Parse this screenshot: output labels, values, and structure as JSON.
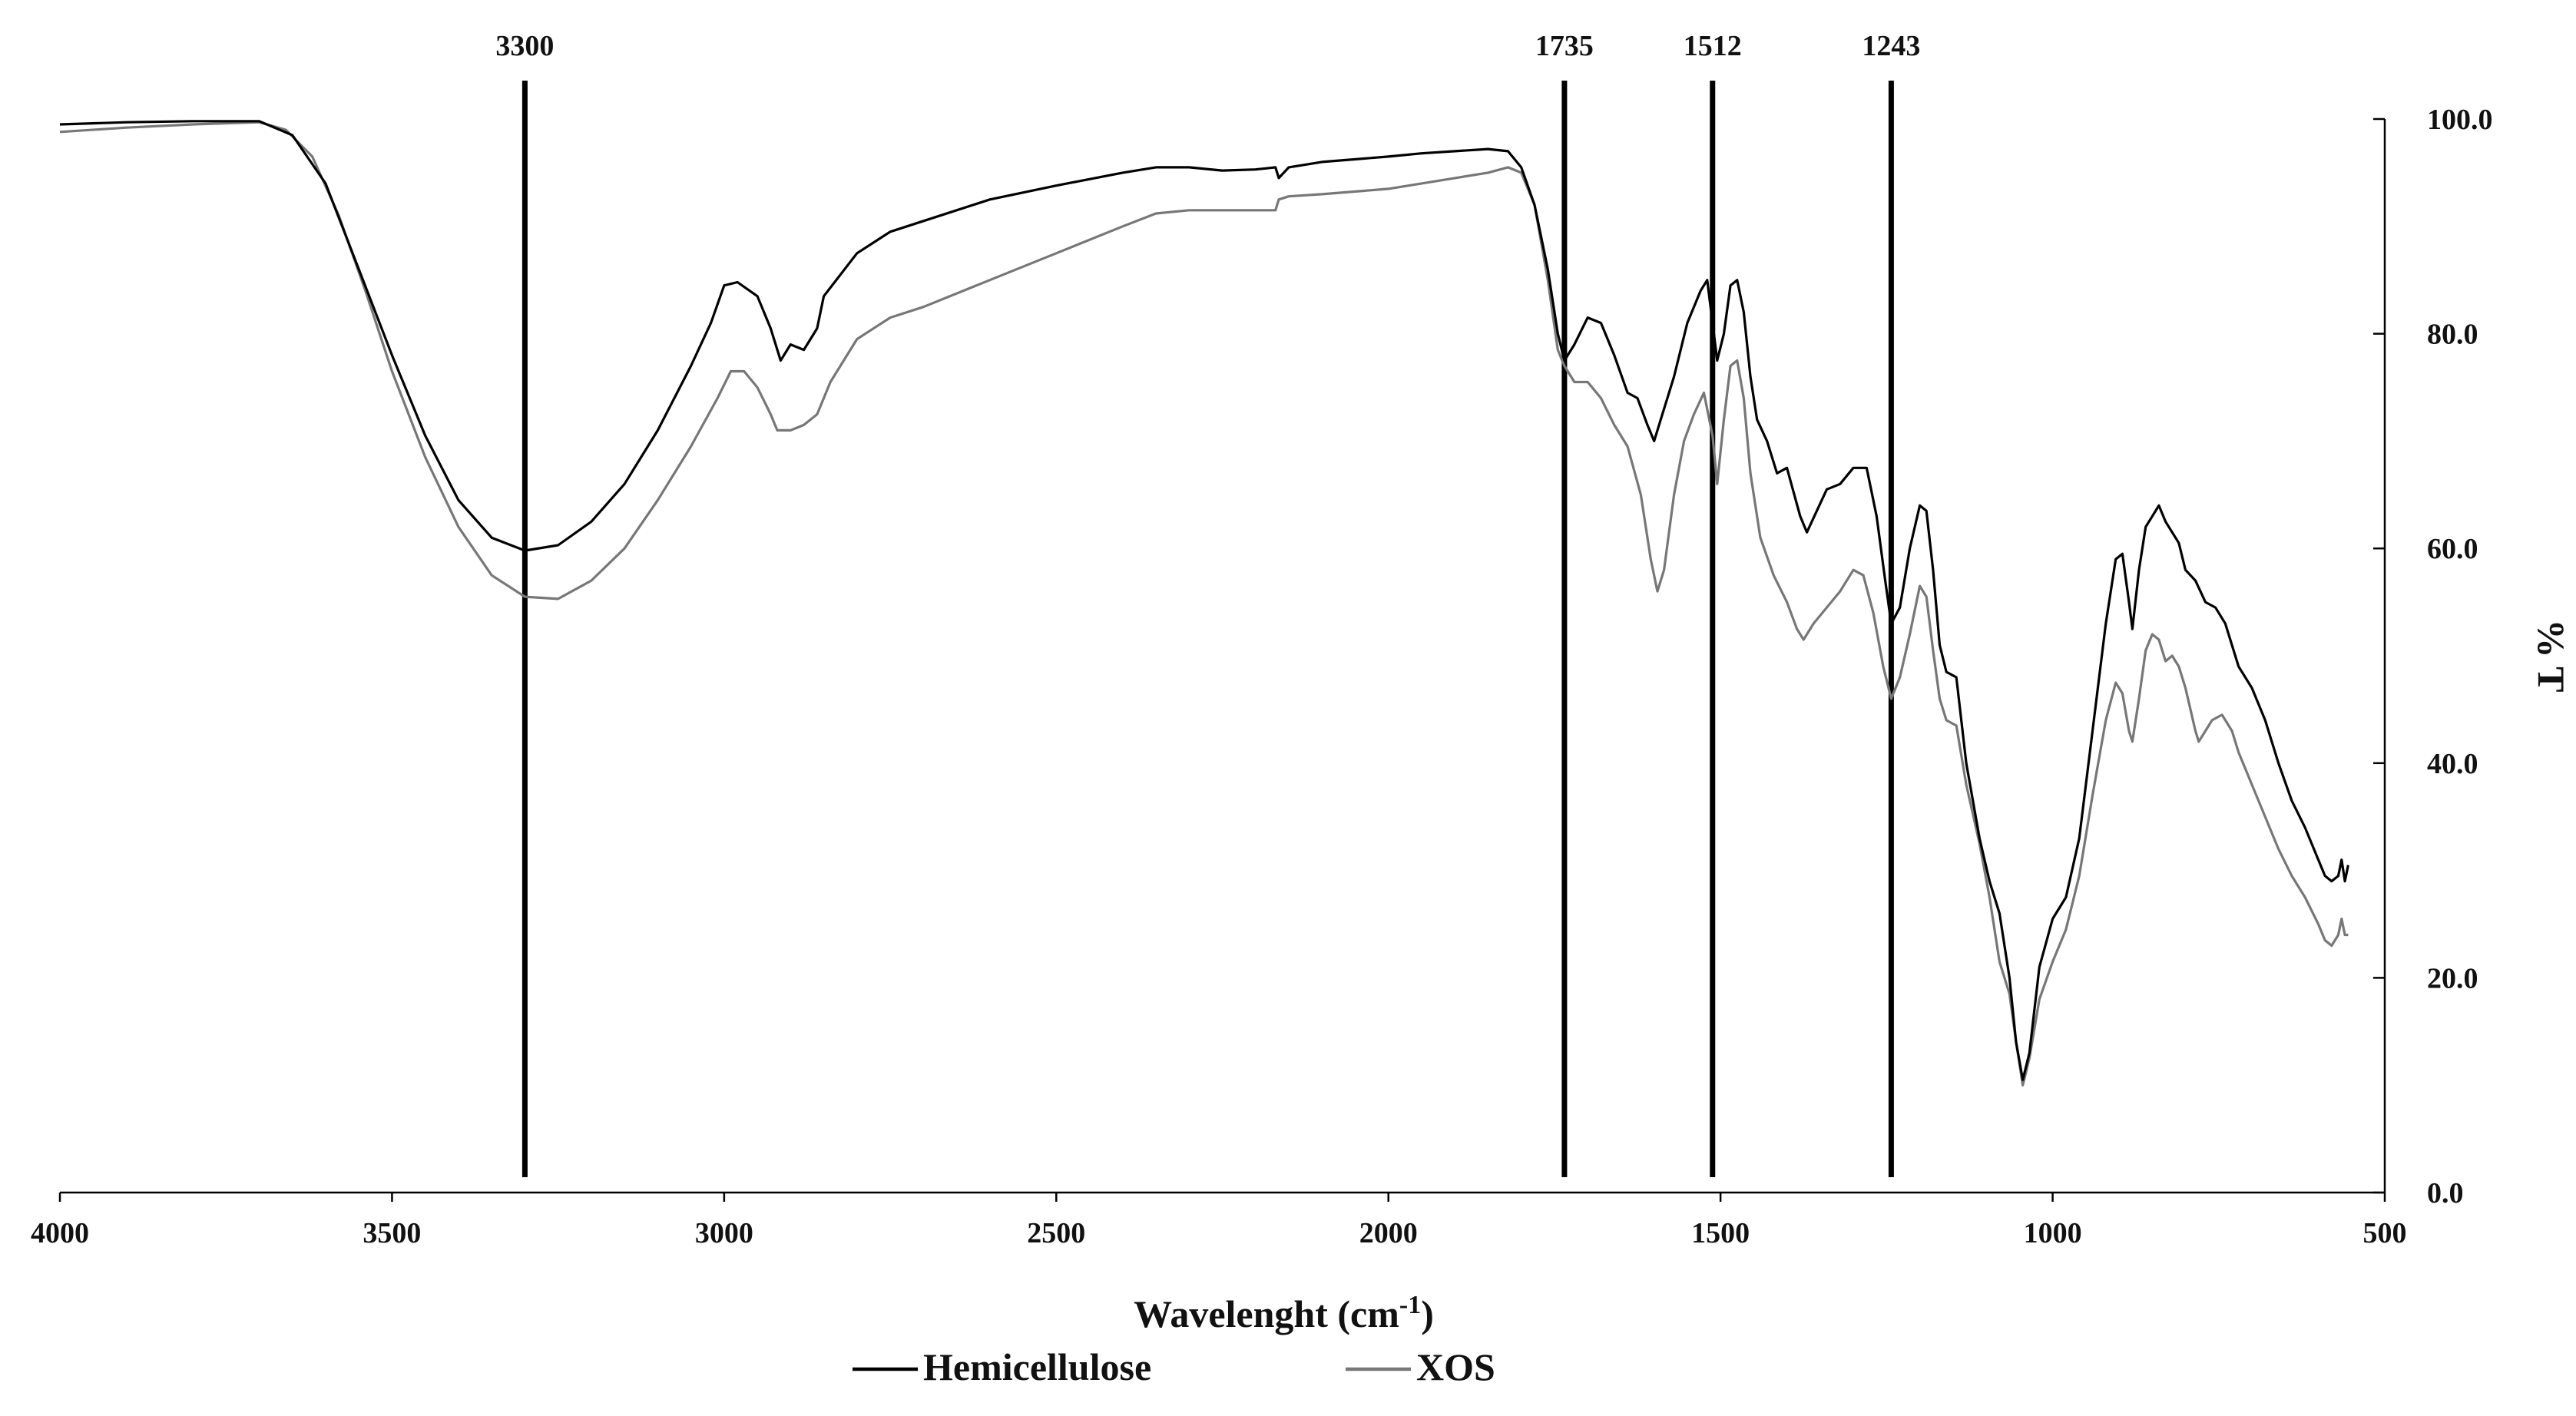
{
  "chart_data": {
    "type": "line",
    "title": "",
    "xlabel": "Wavelenght  (cm",
    "xlabel_sup": "-1",
    "xlabel_close": ")",
    "ylabel": "% T",
    "xlim": [
      4000,
      500
    ],
    "ylim": [
      0,
      100
    ],
    "x_ticks": [
      4000,
      3500,
      3000,
      2500,
      2000,
      1500,
      1000,
      500
    ],
    "x_tick_labels": [
      "4000",
      "3500",
      "3000",
      "2500",
      "2000",
      "1500",
      "1000",
      "500"
    ],
    "y_ticks": [
      0,
      20,
      40,
      60,
      80,
      100
    ],
    "y_tick_labels": [
      "0.0",
      "20.0",
      "40.0",
      "60.0",
      "80.0",
      "100.0"
    ],
    "y_axis_side": "right",
    "grid": false,
    "legend_position": "bottom-center",
    "reference_lines": [
      {
        "x": 3300,
        "label": "3300"
      },
      {
        "x": 1735,
        "label": "1735"
      },
      {
        "x": 1512,
        "label": "1512"
      },
      {
        "x": 1243,
        "label": "1243"
      }
    ],
    "series": [
      {
        "name": "Hemicellulose",
        "color": "#000000",
        "points": [
          [
            4000,
            99.5
          ],
          [
            3900,
            99.7
          ],
          [
            3800,
            99.8
          ],
          [
            3700,
            99.8
          ],
          [
            3650,
            98.5
          ],
          [
            3600,
            94
          ],
          [
            3550,
            86
          ],
          [
            3500,
            78
          ],
          [
            3450,
            70.5
          ],
          [
            3400,
            64.5
          ],
          [
            3350,
            61
          ],
          [
            3300,
            59.8
          ],
          [
            3250,
            60.3
          ],
          [
            3200,
            62.5
          ],
          [
            3150,
            66
          ],
          [
            3100,
            71
          ],
          [
            3050,
            77
          ],
          [
            3020,
            81
          ],
          [
            3000,
            84.5
          ],
          [
            2980,
            84.8
          ],
          [
            2950,
            83.5
          ],
          [
            2930,
            80.5
          ],
          [
            2915,
            77.5
          ],
          [
            2900,
            79
          ],
          [
            2880,
            78.5
          ],
          [
            2860,
            80.5
          ],
          [
            2850,
            83.5
          ],
          [
            2800,
            87.5
          ],
          [
            2750,
            89.5
          ],
          [
            2700,
            90.5
          ],
          [
            2600,
            92.5
          ],
          [
            2500,
            93.8
          ],
          [
            2400,
            95
          ],
          [
            2350,
            95.5
          ],
          [
            2300,
            95.5
          ],
          [
            2250,
            95.2
          ],
          [
            2200,
            95.3
          ],
          [
            2170,
            95.5
          ],
          [
            2165,
            94.5
          ],
          [
            2150,
            95.5
          ],
          [
            2100,
            96
          ],
          [
            2000,
            96.5
          ],
          [
            1950,
            96.8
          ],
          [
            1900,
            97
          ],
          [
            1850,
            97.2
          ],
          [
            1820,
            97
          ],
          [
            1800,
            95.5
          ],
          [
            1780,
            92
          ],
          [
            1760,
            86
          ],
          [
            1745,
            80
          ],
          [
            1735,
            77.5
          ],
          [
            1720,
            79
          ],
          [
            1700,
            81.5
          ],
          [
            1680,
            81
          ],
          [
            1660,
            78
          ],
          [
            1640,
            74.5
          ],
          [
            1625,
            74
          ],
          [
            1610,
            71.5
          ],
          [
            1600,
            70
          ],
          [
            1590,
            72
          ],
          [
            1570,
            76
          ],
          [
            1550,
            81
          ],
          [
            1530,
            84
          ],
          [
            1520,
            85
          ],
          [
            1512,
            81
          ],
          [
            1505,
            77.5
          ],
          [
            1495,
            80
          ],
          [
            1485,
            84.5
          ],
          [
            1475,
            85
          ],
          [
            1465,
            82
          ],
          [
            1455,
            76
          ],
          [
            1445,
            72
          ],
          [
            1430,
            70
          ],
          [
            1415,
            67
          ],
          [
            1400,
            67.5
          ],
          [
            1380,
            63
          ],
          [
            1370,
            61.5
          ],
          [
            1355,
            63.5
          ],
          [
            1340,
            65.5
          ],
          [
            1320,
            66
          ],
          [
            1300,
            67.5
          ],
          [
            1280,
            67.5
          ],
          [
            1265,
            63
          ],
          [
            1252,
            57
          ],
          [
            1243,
            53
          ],
          [
            1230,
            54.5
          ],
          [
            1215,
            60
          ],
          [
            1200,
            64
          ],
          [
            1190,
            63.5
          ],
          [
            1180,
            58
          ],
          [
            1170,
            51
          ],
          [
            1160,
            48.5
          ],
          [
            1145,
            48
          ],
          [
            1130,
            40
          ],
          [
            1110,
            33
          ],
          [
            1095,
            29
          ],
          [
            1080,
            26
          ],
          [
            1065,
            20
          ],
          [
            1055,
            14
          ],
          [
            1045,
            10.5
          ],
          [
            1035,
            13
          ],
          [
            1020,
            21
          ],
          [
            1000,
            25.5
          ],
          [
            980,
            27.5
          ],
          [
            960,
            33
          ],
          [
            940,
            43
          ],
          [
            920,
            53
          ],
          [
            905,
            59
          ],
          [
            895,
            59.5
          ],
          [
            885,
            55
          ],
          [
            880,
            52.5
          ],
          [
            870,
            58
          ],
          [
            860,
            62
          ],
          [
            850,
            63
          ],
          [
            840,
            64
          ],
          [
            830,
            62.5
          ],
          [
            820,
            61.5
          ],
          [
            810,
            60.5
          ],
          [
            800,
            58
          ],
          [
            785,
            57
          ],
          [
            770,
            55
          ],
          [
            755,
            54.5
          ],
          [
            740,
            53
          ],
          [
            720,
            49
          ],
          [
            700,
            47
          ],
          [
            680,
            44
          ],
          [
            660,
            40
          ],
          [
            640,
            36.5
          ],
          [
            620,
            34
          ],
          [
            600,
            31
          ],
          [
            590,
            29.5
          ],
          [
            580,
            29
          ],
          [
            570,
            29.5
          ],
          [
            565,
            31
          ],
          [
            560,
            29
          ],
          [
            555,
            30.5
          ]
        ]
      },
      {
        "name": "XOS",
        "color": "#777777",
        "points": [
          [
            4000,
            98.8
          ],
          [
            3900,
            99.2
          ],
          [
            3800,
            99.5
          ],
          [
            3700,
            99.7
          ],
          [
            3660,
            99
          ],
          [
            3620,
            96.5
          ],
          [
            3580,
            91
          ],
          [
            3540,
            84
          ],
          [
            3500,
            76.5
          ],
          [
            3450,
            68.5
          ],
          [
            3400,
            62
          ],
          [
            3350,
            57.5
          ],
          [
            3300,
            55.5
          ],
          [
            3250,
            55.3
          ],
          [
            3200,
            57
          ],
          [
            3150,
            60
          ],
          [
            3100,
            64.5
          ],
          [
            3050,
            69.5
          ],
          [
            3010,
            74
          ],
          [
            2990,
            76.5
          ],
          [
            2970,
            76.5
          ],
          [
            2950,
            75
          ],
          [
            2930,
            72.5
          ],
          [
            2920,
            71
          ],
          [
            2900,
            71
          ],
          [
            2880,
            71.5
          ],
          [
            2860,
            72.5
          ],
          [
            2840,
            75.5
          ],
          [
            2800,
            79.5
          ],
          [
            2750,
            81.5
          ],
          [
            2700,
            82.5
          ],
          [
            2600,
            85
          ],
          [
            2500,
            87.5
          ],
          [
            2400,
            90
          ],
          [
            2350,
            91.2
          ],
          [
            2300,
            91.5
          ],
          [
            2250,
            91.5
          ],
          [
            2200,
            91.5
          ],
          [
            2170,
            91.5
          ],
          [
            2165,
            92.5
          ],
          [
            2150,
            92.8
          ],
          [
            2100,
            93
          ],
          [
            2000,
            93.5
          ],
          [
            1950,
            94
          ],
          [
            1900,
            94.5
          ],
          [
            1850,
            95
          ],
          [
            1820,
            95.5
          ],
          [
            1800,
            95
          ],
          [
            1780,
            92
          ],
          [
            1760,
            85
          ],
          [
            1745,
            78.5
          ],
          [
            1735,
            77
          ],
          [
            1720,
            75.5
          ],
          [
            1700,
            75.5
          ],
          [
            1680,
            74
          ],
          [
            1660,
            71.5
          ],
          [
            1640,
            69.5
          ],
          [
            1620,
            65
          ],
          [
            1605,
            59
          ],
          [
            1595,
            56
          ],
          [
            1585,
            58
          ],
          [
            1570,
            65
          ],
          [
            1555,
            70
          ],
          [
            1540,
            72.5
          ],
          [
            1525,
            74.5
          ],
          [
            1512,
            70.5
          ],
          [
            1505,
            66
          ],
          [
            1495,
            72
          ],
          [
            1485,
            77
          ],
          [
            1475,
            77.5
          ],
          [
            1465,
            74
          ],
          [
            1455,
            67
          ],
          [
            1440,
            61
          ],
          [
            1420,
            57.5
          ],
          [
            1400,
            55
          ],
          [
            1385,
            52.5
          ],
          [
            1375,
            51.5
          ],
          [
            1360,
            53
          ],
          [
            1340,
            54.5
          ],
          [
            1320,
            56
          ],
          [
            1300,
            58
          ],
          [
            1285,
            57.5
          ],
          [
            1270,
            54
          ],
          [
            1255,
            49
          ],
          [
            1243,
            46
          ],
          [
            1230,
            48
          ],
          [
            1215,
            52
          ],
          [
            1200,
            56.5
          ],
          [
            1190,
            55.5
          ],
          [
            1180,
            50.5
          ],
          [
            1170,
            46
          ],
          [
            1160,
            44
          ],
          [
            1145,
            43.5
          ],
          [
            1130,
            38
          ],
          [
            1110,
            32.5
          ],
          [
            1095,
            27.5
          ],
          [
            1080,
            21.5
          ],
          [
            1065,
            18.5
          ],
          [
            1055,
            14
          ],
          [
            1045,
            10
          ],
          [
            1035,
            12.5
          ],
          [
            1020,
            18
          ],
          [
            1000,
            21.5
          ],
          [
            980,
            24.5
          ],
          [
            960,
            29.5
          ],
          [
            940,
            37
          ],
          [
            920,
            44
          ],
          [
            905,
            47.5
          ],
          [
            895,
            46.5
          ],
          [
            885,
            43
          ],
          [
            880,
            42
          ],
          [
            870,
            46
          ],
          [
            860,
            50.5
          ],
          [
            850,
            52
          ],
          [
            840,
            51.5
          ],
          [
            830,
            49.5
          ],
          [
            820,
            50
          ],
          [
            810,
            49
          ],
          [
            800,
            47
          ],
          [
            785,
            43
          ],
          [
            780,
            42
          ],
          [
            770,
            43
          ],
          [
            760,
            44
          ],
          [
            745,
            44.5
          ],
          [
            730,
            43
          ],
          [
            720,
            41
          ],
          [
            700,
            38
          ],
          [
            680,
            35
          ],
          [
            660,
            32
          ],
          [
            640,
            29.5
          ],
          [
            620,
            27.5
          ],
          [
            600,
            25
          ],
          [
            590,
            23.5
          ],
          [
            580,
            23
          ],
          [
            570,
            24
          ],
          [
            565,
            25.5
          ],
          [
            560,
            24
          ],
          [
            555,
            24
          ]
        ]
      }
    ]
  }
}
